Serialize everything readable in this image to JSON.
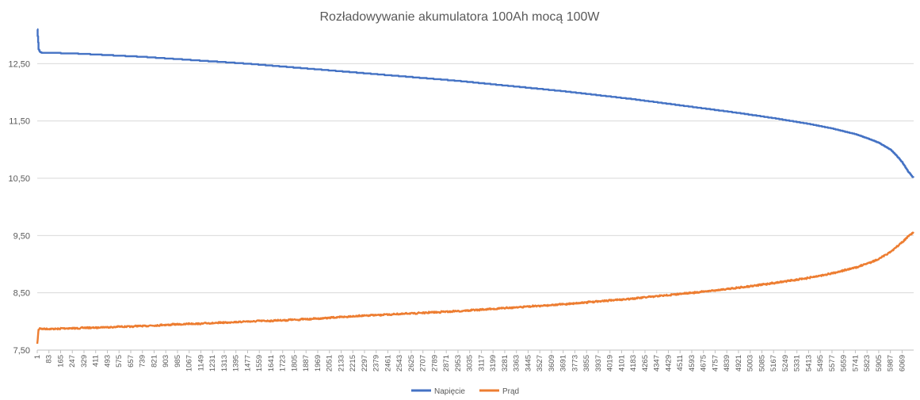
{
  "chart_data": {
    "type": "line",
    "title": "Rozładowywanie akumulatora 100Ah mocą 100W",
    "xlabel": "",
    "ylabel": "",
    "ylim": [
      7.5,
      13.1
    ],
    "yticks": [
      "7,50",
      "8,50",
      "9,50",
      "10,50",
      "11,50",
      "12,50"
    ],
    "ytick_values": [
      7.5,
      8.5,
      9.5,
      10.5,
      11.5,
      12.5
    ],
    "xlim": [
      1,
      6150
    ],
    "xticks": [
      1,
      83,
      165,
      247,
      329,
      411,
      493,
      575,
      657,
      739,
      821,
      903,
      985,
      1067,
      1149,
      1231,
      1313,
      1395,
      1477,
      1559,
      1641,
      1723,
      1805,
      1887,
      1969,
      2051,
      2133,
      2215,
      2297,
      2379,
      2461,
      2543,
      2625,
      2707,
      2789,
      2871,
      2953,
      3035,
      3117,
      3199,
      3281,
      3363,
      3445,
      3527,
      3609,
      3691,
      3773,
      3855,
      3937,
      4019,
      4101,
      4183,
      4265,
      4347,
      4429,
      4511,
      4593,
      4675,
      4757,
      4839,
      4921,
      5003,
      5085,
      5167,
      5249,
      5331,
      5413,
      5495,
      5577,
      5659,
      5741,
      5823,
      5905,
      5987,
      6069
    ],
    "grid": true,
    "legend_position": "bottom",
    "series": [
      {
        "name": "Napięcie",
        "color": "#4472c4",
        "x": [
          1,
          10,
          20,
          40,
          83,
          247,
          493,
          739,
          985,
          1231,
          1477,
          1723,
          1969,
          2215,
          2461,
          2707,
          2953,
          3199,
          3445,
          3691,
          3937,
          4183,
          4429,
          4675,
          4921,
          5167,
          5413,
          5577,
          5741,
          5823,
          5905,
          5987,
          6028,
          6069,
          6110,
          6150
        ],
        "values": [
          13.1,
          12.75,
          12.7,
          12.69,
          12.69,
          12.68,
          12.65,
          12.62,
          12.58,
          12.54,
          12.5,
          12.45,
          12.4,
          12.35,
          12.3,
          12.25,
          12.2,
          12.14,
          12.08,
          12.02,
          11.95,
          11.88,
          11.8,
          11.72,
          11.64,
          11.55,
          11.45,
          11.37,
          11.27,
          11.2,
          11.12,
          11.0,
          10.9,
          10.78,
          10.62,
          10.5
        ]
      },
      {
        "name": "Prąd",
        "color": "#ed7d31",
        "x": [
          1,
          10,
          20,
          40,
          83,
          247,
          493,
          739,
          985,
          1231,
          1477,
          1723,
          1969,
          2215,
          2461,
          2707,
          2953,
          3199,
          3445,
          3691,
          3937,
          4183,
          4429,
          4675,
          4921,
          5167,
          5413,
          5577,
          5741,
          5823,
          5905,
          5987,
          6028,
          6069,
          6110,
          6150
        ],
        "values": [
          7.6,
          7.85,
          7.88,
          7.87,
          7.87,
          7.88,
          7.9,
          7.92,
          7.95,
          7.97,
          8.0,
          8.02,
          8.05,
          8.09,
          8.12,
          8.15,
          8.18,
          8.22,
          8.26,
          8.3,
          8.35,
          8.4,
          8.46,
          8.52,
          8.59,
          8.67,
          8.76,
          8.84,
          8.94,
          9.01,
          9.09,
          9.21,
          9.3,
          9.38,
          9.48,
          9.56
        ]
      }
    ]
  }
}
